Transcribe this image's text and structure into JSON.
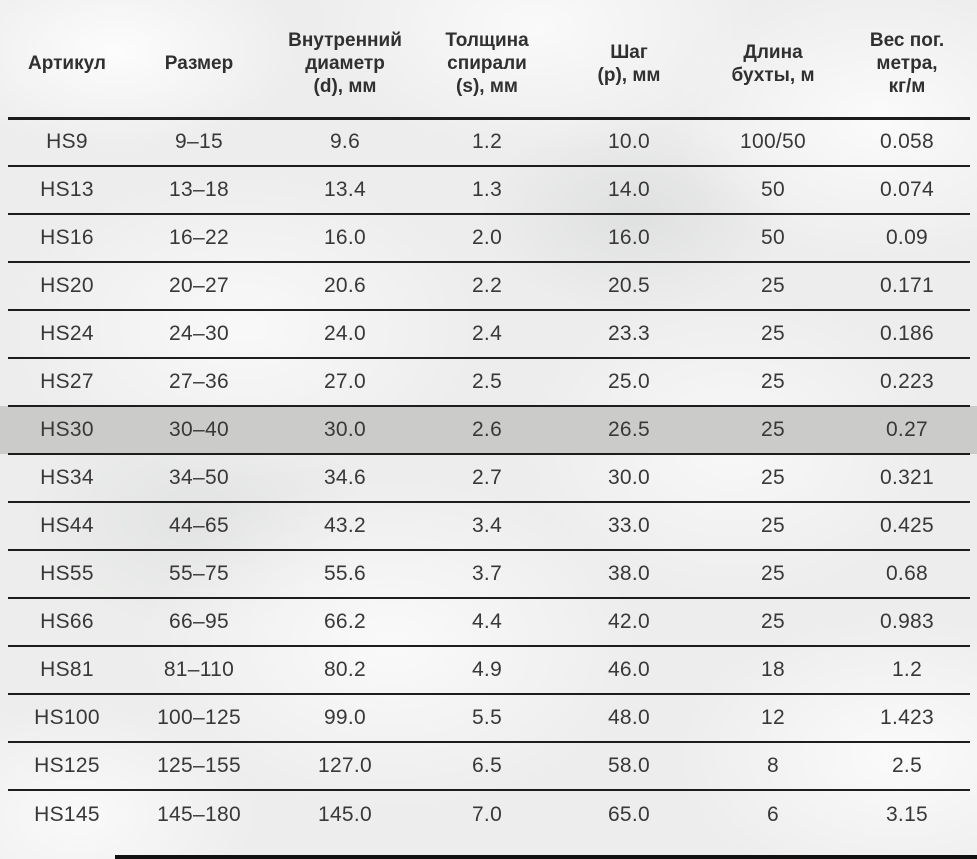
{
  "page": {
    "background_color": "#ecedec",
    "highlight_color": "#cbccca",
    "line_color": "#1c1c1c",
    "text_color": "#383838"
  },
  "table": {
    "headers": [
      "Артикул",
      "Размер",
      "Внутренний\nдиаметр\n(d), мм",
      "Толщина\nспирали\n(s), мм",
      "Шаг\n(p), мм",
      "Длина\nбухты, м",
      "Вес пог.\nметра,\nкг/м"
    ],
    "rows": [
      [
        "HS9",
        "9–15",
        "9.6",
        "1.2",
        "10.0",
        "100/50",
        "0.058"
      ],
      [
        "HS13",
        "13–18",
        "13.4",
        "1.3",
        "14.0",
        "50",
        "0.074"
      ],
      [
        "HS16",
        "16–22",
        "16.0",
        "2.0",
        "16.0",
        "50",
        "0.09"
      ],
      [
        "HS20",
        "20–27",
        "20.6",
        "2.2",
        "20.5",
        "25",
        "0.171"
      ],
      [
        "HS24",
        "24–30",
        "24.0",
        "2.4",
        "23.3",
        "25",
        "0.186"
      ],
      [
        "HS27",
        "27–36",
        "27.0",
        "2.5",
        "25.0",
        "25",
        "0.223"
      ],
      [
        "HS30",
        "30–40",
        "30.0",
        "2.6",
        "26.5",
        "25",
        "0.27"
      ],
      [
        "HS34",
        "34–50",
        "34.6",
        "2.7",
        "30.0",
        "25",
        "0.321"
      ],
      [
        "HS44",
        "44–65",
        "43.2",
        "3.4",
        "33.0",
        "25",
        "0.425"
      ],
      [
        "HS55",
        "55–75",
        "55.6",
        "3.7",
        "38.0",
        "25",
        "0.68"
      ],
      [
        "HS66",
        "66–95",
        "66.2",
        "4.4",
        "42.0",
        "25",
        "0.983"
      ],
      [
        "HS81",
        "81–110",
        "80.2",
        "4.9",
        "46.0",
        "18",
        "1.2"
      ],
      [
        "HS100",
        "100–125",
        "99.0",
        "5.5",
        "48.0",
        "12",
        "1.423"
      ],
      [
        "HS125",
        "125–155",
        "127.0",
        "6.5",
        "58.0",
        "8",
        "2.5"
      ],
      [
        "HS145",
        "145–180",
        "145.0",
        "7.0",
        "65.0",
        "6",
        "3.15"
      ]
    ],
    "highlighted_row_index": 6,
    "highlighted_article": "HS30"
  },
  "chart_data": {
    "type": "table",
    "columns": [
      "Артикул",
      "Размер",
      "Внутренний диаметр (d), мм",
      "Толщина спирали (s), мм",
      "Шаг (p), мм",
      "Длина бухты, м",
      "Вес пог. метра, кг/м"
    ],
    "rows": [
      [
        "HS9",
        "9–15",
        9.6,
        1.2,
        10.0,
        "100/50",
        0.058
      ],
      [
        "HS13",
        "13–18",
        13.4,
        1.3,
        14.0,
        "50",
        0.074
      ],
      [
        "HS16",
        "16–22",
        16.0,
        2.0,
        16.0,
        "50",
        0.09
      ],
      [
        "HS20",
        "20–27",
        20.6,
        2.2,
        20.5,
        "25",
        0.171
      ],
      [
        "HS24",
        "24–30",
        24.0,
        2.4,
        23.3,
        "25",
        0.186
      ],
      [
        "HS27",
        "27–36",
        27.0,
        2.5,
        25.0,
        "25",
        0.223
      ],
      [
        "HS30",
        "30–40",
        30.0,
        2.6,
        26.5,
        "25",
        0.27
      ],
      [
        "HS34",
        "34–50",
        34.6,
        2.7,
        30.0,
        "25",
        0.321
      ],
      [
        "HS44",
        "44–65",
        43.2,
        3.4,
        33.0,
        "25",
        0.425
      ],
      [
        "HS55",
        "55–75",
        55.6,
        3.7,
        38.0,
        "25",
        0.68
      ],
      [
        "HS66",
        "66–95",
        66.2,
        4.4,
        42.0,
        "25",
        0.983
      ],
      [
        "HS81",
        "81–110",
        80.2,
        4.9,
        46.0,
        "18",
        1.2
      ],
      [
        "HS100",
        "100–125",
        99.0,
        5.5,
        48.0,
        "12",
        1.423
      ],
      [
        "HS125",
        "125–155",
        127.0,
        6.5,
        58.0,
        "8",
        2.5
      ],
      [
        "HS145",
        "145–180",
        145.0,
        7.0,
        65.0,
        "6",
        3.15
      ]
    ]
  }
}
